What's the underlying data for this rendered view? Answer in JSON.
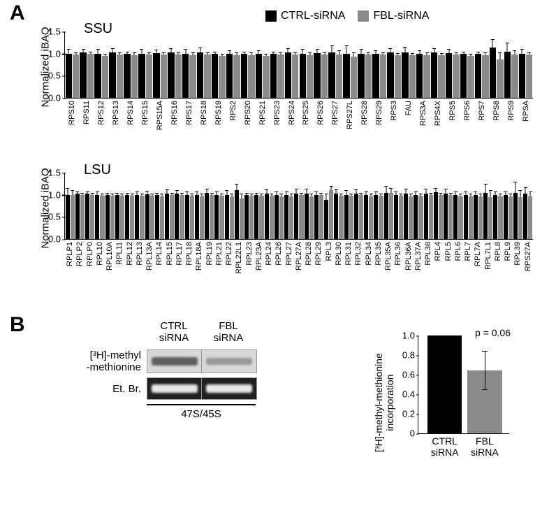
{
  "colors": {
    "ctrl": "#000000",
    "fbl": "#8a8a8a",
    "axis": "#000000",
    "bg": "#ffffff"
  },
  "panelA": {
    "label": "A",
    "legend": {
      "ctrl": "CTRL-siRNA",
      "fbl": "FBL-siRNA"
    },
    "ylabel": "Normalized iBAQ",
    "ylim": [
      0,
      1.5
    ],
    "yticks": [
      0.0,
      0.5,
      1.0,
      1.5
    ],
    "ssu": {
      "title": "SSU",
      "categories": [
        "RPS10",
        "RPS11",
        "RPS12",
        "RPS13",
        "RPS14",
        "RPS15",
        "RPS15A",
        "RPS16",
        "RPS17",
        "RPS18",
        "RPS19",
        "RPS2",
        "RPS20",
        "RPS21",
        "RPS23",
        "RPS24",
        "RPS25",
        "RPS26",
        "RPS27",
        "RPS27L",
        "RPS28",
        "RPS29",
        "RPS3",
        "FAU",
        "RPS3A",
        "RPS4X",
        "RPS5",
        "RPS6",
        "RPS7",
        "RPS8",
        "RPS9",
        "RPSA"
      ],
      "ctrl_values": [
        1.0,
        1.03,
        1.0,
        1.02,
        1.0,
        1.0,
        1.01,
        1.02,
        1.0,
        1.02,
        1.0,
        1.0,
        1.0,
        1.0,
        1.0,
        1.02,
        1.0,
        1.01,
        1.03,
        0.99,
        1.0,
        1.0,
        1.02,
        1.03,
        1.0,
        1.02,
        1.01,
        1.0,
        1.0,
        1.13,
        1.04,
        1.0
      ],
      "ctrl_err": [
        0.1,
        0.07,
        0.1,
        0.1,
        0.05,
        0.1,
        0.08,
        0.1,
        0.1,
        0.12,
        0.05,
        0.08,
        0.05,
        0.08,
        0.05,
        0.1,
        0.1,
        0.1,
        0.15,
        0.2,
        0.1,
        0.08,
        0.1,
        0.12,
        0.08,
        0.1,
        0.1,
        0.05,
        0.05,
        0.2,
        0.2,
        0.1
      ],
      "fbl_values": [
        0.98,
        1.0,
        0.95,
        0.98,
        0.97,
        0.98,
        0.98,
        0.98,
        0.97,
        0.98,
        0.95,
        0.97,
        0.97,
        0.95,
        0.98,
        0.98,
        0.97,
        0.98,
        0.98,
        0.93,
        0.98,
        0.98,
        0.96,
        0.96,
        0.97,
        0.96,
        0.98,
        0.94,
        0.97,
        0.87,
        0.98,
        0.98
      ],
      "fbl_err": [
        0.05,
        0.05,
        0.05,
        0.05,
        0.05,
        0.05,
        0.05,
        0.05,
        0.05,
        0.05,
        0.05,
        0.05,
        0.05,
        0.05,
        0.05,
        0.05,
        0.05,
        0.05,
        0.1,
        0.1,
        0.05,
        0.05,
        0.05,
        0.05,
        0.05,
        0.05,
        0.05,
        0.05,
        0.05,
        0.15,
        0.1,
        0.05
      ]
    },
    "lsu": {
      "title": "LSU",
      "categories": [
        "RPLP1",
        "RPLP2",
        "RPLP0",
        "RPL10",
        "RPL10A",
        "RPL11",
        "RPL12",
        "RPL13",
        "RPL13A",
        "RPL14",
        "RPL15",
        "RPL17",
        "RPL18",
        "RPL18A",
        "RPL19",
        "RPL21",
        "RPL22",
        "RPL22L1",
        "RPL23",
        "RPL23A",
        "RPL24",
        "RPL26",
        "RPL27",
        "RPL27A",
        "RPL28",
        "RPL29",
        "RPL3",
        "RPL30",
        "RPL31",
        "RPL32",
        "RPL34",
        "RPL35",
        "RPL35A",
        "RPL36",
        "RPL36A",
        "RPL37A",
        "RPL38",
        "RPL4",
        "RPL5",
        "RPL6",
        "RPL7",
        "RPL7A",
        "RPL7L1",
        "RPL8",
        "RPL9",
        "RPL39",
        "RPS27A"
      ],
      "ctrl_values": [
        1.0,
        1.02,
        1.02,
        1.0,
        1.0,
        1.0,
        1.0,
        1.0,
        1.01,
        1.0,
        1.02,
        1.03,
        1.0,
        1.0,
        1.04,
        1.0,
        1.0,
        1.1,
        1.0,
        1.0,
        1.02,
        1.0,
        1.0,
        1.03,
        1.03,
        1.0,
        0.88,
        1.02,
        1.0,
        1.02,
        1.0,
        1.0,
        1.05,
        1.0,
        1.03,
        1.0,
        1.03,
        1.06,
        1.03,
        1.0,
        1.0,
        1.0,
        1.05,
        1.0,
        1.0,
        1.05,
        1.02
      ],
      "ctrl_err": [
        0.15,
        0.05,
        0.05,
        0.07,
        0.05,
        0.05,
        0.05,
        0.08,
        0.08,
        0.05,
        0.1,
        0.08,
        0.07,
        0.07,
        0.1,
        0.07,
        0.1,
        0.15,
        0.05,
        0.05,
        0.1,
        0.08,
        0.08,
        0.1,
        0.1,
        0.08,
        0.15,
        0.1,
        0.1,
        0.1,
        0.08,
        0.07,
        0.15,
        0.08,
        0.1,
        0.07,
        0.1,
        0.1,
        0.1,
        0.08,
        0.08,
        0.08,
        0.2,
        0.08,
        0.08,
        0.25,
        0.15
      ],
      "fbl_values": [
        1.0,
        1.0,
        1.0,
        0.98,
        0.98,
        0.98,
        0.98,
        0.98,
        0.98,
        0.97,
        1.0,
        1.0,
        0.98,
        0.97,
        1.0,
        0.98,
        0.97,
        0.92,
        0.98,
        0.98,
        0.98,
        0.97,
        0.97,
        1.0,
        0.97,
        1.0,
        1.1,
        0.98,
        0.98,
        1.0,
        0.97,
        0.98,
        1.05,
        0.98,
        0.97,
        0.98,
        1.0,
        1.0,
        1.0,
        0.97,
        0.97,
        0.97,
        0.95,
        0.97,
        0.97,
        0.95,
        0.97
      ],
      "fbl_err": [
        0.1,
        0.05,
        0.05,
        0.05,
        0.05,
        0.05,
        0.05,
        0.05,
        0.05,
        0.05,
        0.05,
        0.05,
        0.05,
        0.05,
        0.05,
        0.05,
        0.05,
        0.1,
        0.05,
        0.05,
        0.05,
        0.05,
        0.05,
        0.05,
        0.05,
        0.05,
        0.1,
        0.05,
        0.05,
        0.05,
        0.05,
        0.05,
        0.1,
        0.05,
        0.05,
        0.05,
        0.05,
        0.05,
        0.05,
        0.05,
        0.05,
        0.05,
        0.15,
        0.05,
        0.05,
        0.15,
        0.1
      ]
    }
  },
  "panelB": {
    "label": "B",
    "gel": {
      "row1_label_a": "[³H]-methyl",
      "row1_label_b": "-methionine",
      "row2_label": "Et. Br.",
      "col1": "CTRL\nsiRNA",
      "col2": "FBL\nsiRNA",
      "bottom": "47S/45S",
      "band_intensity": {
        "ctrl_h3": 0.85,
        "fbl_h3": 0.45,
        "ctrl_etbr": 0.9,
        "fbl_etbr": 0.9
      }
    },
    "chart": {
      "ylabel": "[³H]-methyl-methionine\nincorporation",
      "ylim": [
        0,
        1.0
      ],
      "yticks": [
        0,
        0.2,
        0.4,
        0.6,
        0.8,
        1.0
      ],
      "categories": [
        "CTRL\nsiRNA",
        "FBL\nsiRNA"
      ],
      "values": [
        1.0,
        0.64
      ],
      "colors": [
        "#000000",
        "#8a8a8a"
      ],
      "err": [
        0,
        0.2
      ],
      "pvalue": "p = 0.06"
    }
  }
}
